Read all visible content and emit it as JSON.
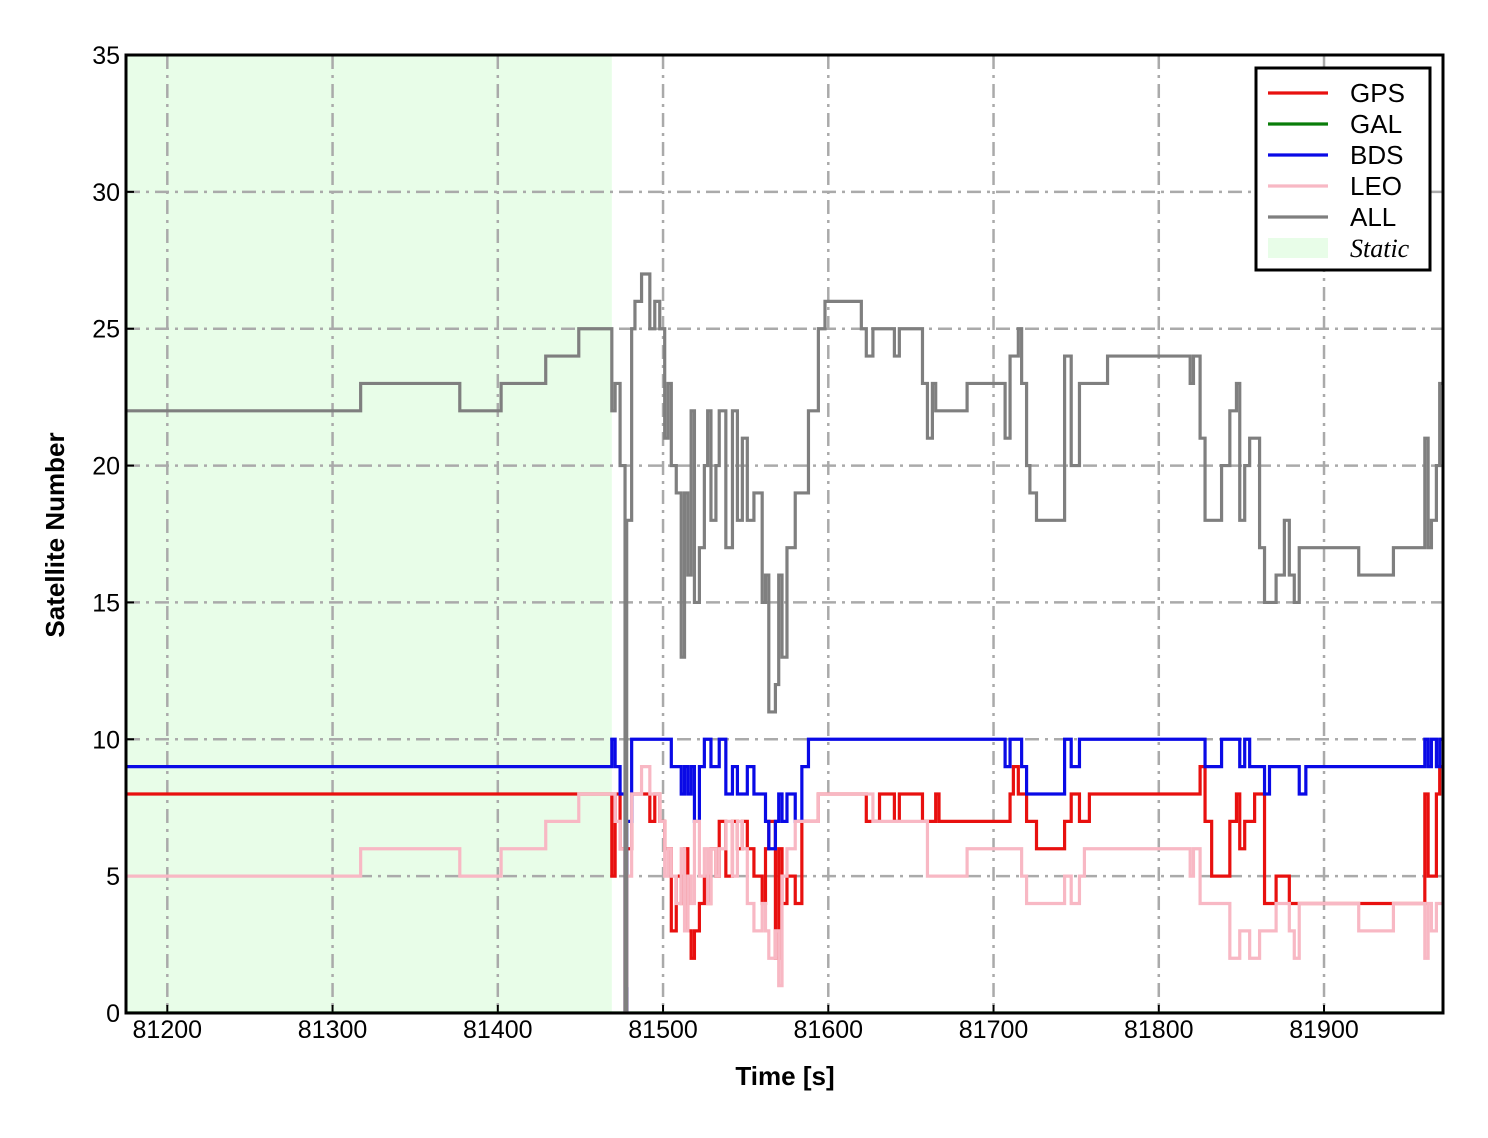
{
  "chart_data": {
    "type": "line",
    "step": "post",
    "xlabel": "Time [s]",
    "ylabel": "Satellite Number",
    "xlim": [
      81175,
      81972
    ],
    "ylim": [
      0,
      35
    ],
    "xticks": [
      81200,
      81300,
      81400,
      81500,
      81600,
      81700,
      81800,
      81900
    ],
    "yticks": [
      0,
      5,
      10,
      15,
      20,
      25,
      30,
      35
    ],
    "grid": true,
    "legend": "upper right",
    "shaded": {
      "name": "Static",
      "x": [
        81175,
        81469
      ],
      "color": "#e8fde8"
    },
    "x": [
      81175,
      81317,
      81377,
      81402,
      81429,
      81449,
      81469,
      81471,
      81474,
      81477,
      81478,
      81481,
      81483,
      81487,
      81492,
      81495,
      81498,
      81501,
      81503,
      81505,
      81508,
      81511,
      81513,
      81515,
      81517,
      81519,
      81522,
      81525,
      81527,
      81529,
      81532,
      81534,
      81538,
      81542,
      81545,
      81548,
      81551,
      81555,
      81560,
      81562,
      81564,
      81568,
      81570,
      81572,
      81575,
      81580,
      81584,
      81588,
      81594,
      81598,
      81620,
      81623,
      81627,
      81631,
      81640,
      81643,
      81646,
      81657,
      81660,
      81663,
      81665,
      81667,
      81684,
      81707,
      81710,
      81712,
      81715,
      81717,
      81720,
      81722,
      81726,
      81743,
      81747,
      81752,
      81755,
      81758,
      81769,
      81771,
      81819,
      81821,
      81825,
      81828,
      81832,
      81838,
      81843,
      81847,
      81849,
      81852,
      81855,
      81858,
      81861,
      81864,
      81867,
      81871,
      81876,
      81879,
      81882,
      81885,
      81889,
      81892,
      81921,
      81923,
      81942,
      81945,
      81961,
      81963,
      81965,
      81968,
      81970,
      81972
    ],
    "series": [
      {
        "name": "GPS",
        "color": "#e8100f",
        "values": [
          8,
          8,
          8,
          8,
          8,
          8,
          5,
          8,
          6,
          0,
          6,
          8,
          8,
          8,
          7,
          8,
          7,
          6,
          6,
          3,
          5,
          4,
          6,
          3,
          2,
          3,
          4,
          5,
          4,
          6,
          5,
          7,
          5,
          7,
          6,
          7,
          6,
          5,
          4,
          6,
          7,
          2,
          6,
          4,
          5,
          4,
          7,
          7,
          8,
          8,
          8,
          7,
          7,
          8,
          7,
          8,
          8,
          7,
          7,
          7,
          8,
          7,
          7,
          7,
          8,
          9,
          8,
          8,
          7,
          7,
          6,
          7,
          8,
          7,
          7,
          8,
          8,
          8,
          8,
          8,
          9,
          7,
          5,
          5,
          7,
          8,
          6,
          7,
          7,
          8,
          8,
          4,
          4,
          5,
          5,
          4,
          4,
          4,
          4,
          4,
          4,
          4,
          4,
          4,
          8,
          5,
          5,
          8,
          9,
          9
        ]
      },
      {
        "name": "GAL",
        "color": "#0a7d0a",
        "values": [
          0,
          0,
          0,
          0,
          0,
          0,
          0,
          0,
          0,
          0,
          0,
          0,
          0,
          0,
          0,
          0,
          0,
          0,
          0,
          0,
          0,
          0,
          0,
          0,
          0,
          0,
          0,
          0,
          0,
          0,
          0,
          0,
          0,
          0,
          0,
          0,
          0,
          0,
          0,
          0,
          0,
          0,
          0,
          0,
          0,
          0,
          0,
          0,
          0,
          0,
          0,
          0,
          0,
          0,
          0,
          0,
          0,
          0,
          0,
          0,
          0,
          0,
          0,
          0,
          0,
          0,
          0,
          0,
          0,
          0,
          0,
          0,
          0,
          0,
          0,
          0,
          0,
          0,
          0,
          0,
          0,
          0,
          0,
          0,
          0,
          0,
          0,
          0,
          0,
          0,
          0,
          0,
          0,
          0,
          0,
          0,
          0,
          0,
          0,
          0,
          0,
          0,
          0,
          0,
          0,
          0,
          0,
          0,
          0,
          0
        ]
      },
      {
        "name": "BDS",
        "color": "#0a0ae6",
        "values": [
          9,
          9,
          9,
          9,
          9,
          9,
          10,
          9,
          8,
          0,
          7,
          10,
          10,
          10,
          10,
          10,
          10,
          10,
          10,
          9,
          9,
          8,
          9,
          8,
          9,
          7,
          9,
          10,
          10,
          9,
          9,
          10,
          8,
          9,
          8,
          8,
          9,
          8,
          8,
          7,
          6,
          7,
          8,
          7,
          8,
          7,
          9,
          10,
          10,
          10,
          10,
          10,
          10,
          10,
          10,
          10,
          10,
          10,
          10,
          10,
          10,
          10,
          10,
          9,
          10,
          10,
          10,
          9,
          8,
          8,
          8,
          10,
          9,
          10,
          10,
          10,
          10,
          10,
          10,
          10,
          10,
          9,
          9,
          10,
          10,
          10,
          9,
          10,
          9,
          9,
          9,
          8,
          9,
          9,
          9,
          9,
          9,
          8,
          9,
          9,
          9,
          9,
          9,
          9,
          10,
          9,
          10,
          9,
          10,
          10
        ]
      },
      {
        "name": "LEO",
        "color": "#f8b8c4",
        "values": [
          5,
          6,
          5,
          6,
          7,
          8,
          8,
          7,
          6,
          1,
          5,
          8,
          8,
          9,
          8,
          8,
          7,
          5,
          6,
          5,
          4,
          6,
          3,
          5,
          4,
          7,
          5,
          6,
          4,
          6,
          5,
          6,
          7,
          5,
          7,
          6,
          4,
          3,
          4,
          3,
          2,
          3,
          1,
          5,
          6,
          7,
          7,
          7,
          8,
          8,
          8,
          8,
          7,
          7,
          7,
          7,
          7,
          7,
          5,
          5,
          5,
          5,
          6,
          6,
          6,
          6,
          6,
          5,
          4,
          4,
          4,
          5,
          4,
          5,
          6,
          6,
          6,
          6,
          5,
          6,
          4,
          4,
          4,
          4,
          2,
          2,
          3,
          3,
          2,
          2,
          3,
          3,
          3,
          4,
          4,
          3,
          2,
          4,
          4,
          4,
          3,
          3,
          4,
          4,
          2,
          4,
          3,
          4,
          4,
          4
        ]
      },
      {
        "name": "ALL",
        "color": "#7f7f7f",
        "values": [
          22,
          23,
          22,
          23,
          24,
          25,
          22,
          23,
          20,
          0,
          18,
          25,
          26,
          27,
          25,
          26,
          25,
          21,
          23,
          20,
          19,
          13,
          19,
          16,
          22,
          15,
          17,
          20,
          22,
          18,
          20,
          22,
          17,
          22,
          18,
          21,
          18,
          19,
          15,
          16,
          11,
          12,
          16,
          13,
          17,
          19,
          19,
          22,
          25,
          26,
          25,
          24,
          25,
          25,
          24,
          25,
          25,
          23,
          21,
          23,
          22,
          22,
          23,
          21,
          24,
          24,
          25,
          23,
          20,
          19,
          18,
          24,
          20,
          23,
          23,
          23,
          24,
          24,
          23,
          24,
          21,
          18,
          18,
          20,
          22,
          23,
          18,
          20,
          21,
          21,
          17,
          15,
          15,
          16,
          18,
          16,
          15,
          17,
          17,
          17,
          16,
          16,
          17,
          17,
          21,
          17,
          18,
          20,
          23,
          23
        ]
      }
    ]
  }
}
